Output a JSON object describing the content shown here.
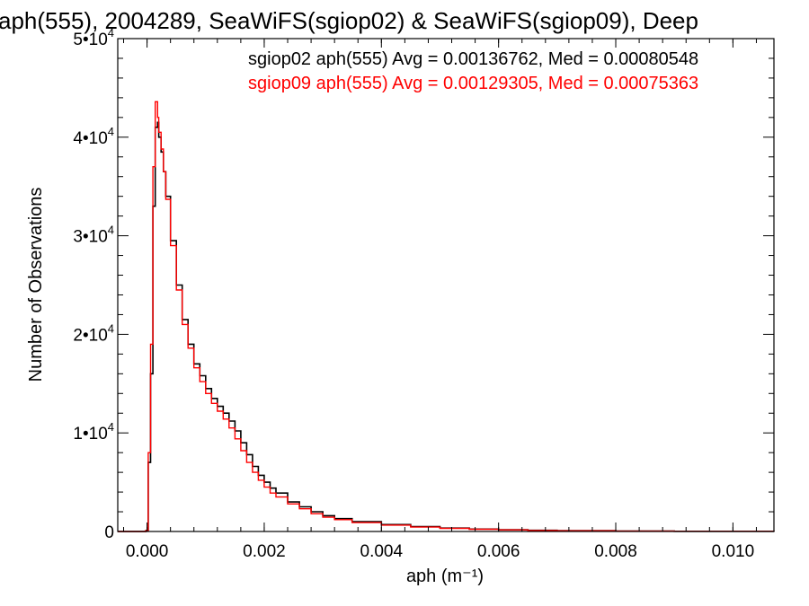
{
  "chart_data": {
    "type": "line",
    "title": "aph(555), 2004289, SeaWiFS(sgiop02) & SeaWiFS(sgiop09), Deep",
    "xlabel": "aph (m⁻¹)",
    "ylabel": "Number of Observations",
    "xlim": [
      -0.0005,
      0.0107
    ],
    "ylim": [
      0,
      50000
    ],
    "grid": false,
    "legend_position": "top-right",
    "x_ticks": [
      {
        "value": 0.0,
        "label": "0.000"
      },
      {
        "value": 0.002,
        "label": "0.002"
      },
      {
        "value": 0.004,
        "label": "0.004"
      },
      {
        "value": 0.006,
        "label": "0.006"
      },
      {
        "value": 0.008,
        "label": "0.008"
      },
      {
        "value": 0.01,
        "label": "0.010"
      }
    ],
    "y_ticks": [
      {
        "value": 0,
        "label": "0",
        "exp": ""
      },
      {
        "value": 10000,
        "label": "1•10",
        "exp": "4"
      },
      {
        "value": 20000,
        "label": "2•10",
        "exp": "4"
      },
      {
        "value": 30000,
        "label": "3•10",
        "exp": "4"
      },
      {
        "value": 40000,
        "label": "4•10",
        "exp": "4"
      },
      {
        "value": 50000,
        "label": "5•10",
        "exp": "4"
      }
    ],
    "annotations": [
      "sgiop02 aph(555) Avg = 0.00136762, Med = 0.00080548",
      "sgiop09 aph(555) Avg = 0.00129305, Med = 0.00075363"
    ],
    "series": [
      {
        "name": "sgiop02",
        "color": "#000000",
        "x": [
          -0.0005,
          -2e-05,
          2e-05,
          6e-05,
          0.0001,
          0.00014,
          0.00018,
          0.0002,
          0.00024,
          0.00028,
          0.00032,
          0.0004,
          0.0005,
          0.0006,
          0.0007,
          0.0008,
          0.0009,
          0.001,
          0.0011,
          0.0012,
          0.0013,
          0.0014,
          0.0015,
          0.0016,
          0.0017,
          0.0018,
          0.0019,
          0.002,
          0.0021,
          0.0022,
          0.0024,
          0.0026,
          0.0028,
          0.003,
          0.0032,
          0.0035,
          0.004,
          0.0045,
          0.005,
          0.0055,
          0.006,
          0.0065,
          0.007,
          0.008,
          0.009,
          0.0107
        ],
        "y": [
          0,
          100,
          7000,
          16000,
          33000,
          41000,
          41500,
          40000,
          38500,
          36500,
          34000,
          29500,
          25000,
          21500,
          19000,
          17000,
          15800,
          14500,
          13500,
          12700,
          12000,
          11200,
          10200,
          9000,
          7800,
          6600,
          5700,
          5000,
          4400,
          3900,
          3000,
          2500,
          2000,
          1600,
          1300,
          1000,
          700,
          500,
          350,
          250,
          180,
          120,
          80,
          40,
          20,
          10
        ]
      },
      {
        "name": "sgiop09",
        "color": "#ff0000",
        "x": [
          -0.0005,
          -2e-05,
          2e-05,
          6e-05,
          0.0001,
          0.00014,
          0.00018,
          0.0002,
          0.00024,
          0.00028,
          0.00032,
          0.0004,
          0.0005,
          0.0006,
          0.0007,
          0.0008,
          0.0009,
          0.001,
          0.0011,
          0.0012,
          0.0013,
          0.0014,
          0.0015,
          0.0016,
          0.0017,
          0.0018,
          0.0019,
          0.002,
          0.0021,
          0.0022,
          0.0024,
          0.0026,
          0.0028,
          0.003,
          0.0032,
          0.0035,
          0.004,
          0.0045,
          0.005,
          0.0055,
          0.006,
          0.0065,
          0.007,
          0.008,
          0.009,
          0.0107
        ],
        "y": [
          0,
          100,
          8000,
          19000,
          37000,
          43600,
          42000,
          40500,
          38800,
          36500,
          33700,
          29000,
          24500,
          21000,
          18600,
          16600,
          15200,
          14000,
          13000,
          12200,
          11400,
          10500,
          9400,
          8200,
          7000,
          6000,
          5200,
          4500,
          3900,
          3500,
          2800,
          2300,
          1800,
          1450,
          1200,
          900,
          650,
          450,
          320,
          230,
          160,
          100,
          70,
          35,
          15,
          8
        ]
      }
    ]
  }
}
